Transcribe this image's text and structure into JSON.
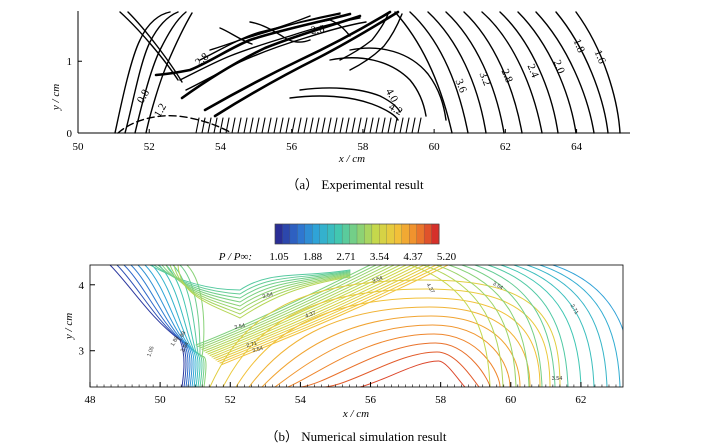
{
  "chart_data": [
    {
      "type": "contour",
      "caption": "（a） Experimental result",
      "xlabel": "x / cm",
      "ylabel": "y / cm",
      "xlim": [
        50,
        65.5
      ],
      "ylim": [
        0,
        1.7
      ],
      "xticks": [
        50,
        52,
        54,
        56,
        58,
        60,
        62,
        64
      ],
      "yticks": [
        0,
        1
      ],
      "contour_labels": [
        "0.8",
        "1.2",
        "2.8",
        "2.6",
        "4.2",
        "4.0",
        "3.6",
        "3.2",
        "2.8",
        "2.4",
        "2.0",
        "1.8",
        "1.6"
      ]
    },
    {
      "type": "contour",
      "caption": "（b） Numerical simulation result",
      "xlabel": "x / cm",
      "ylabel": "y / cm",
      "xlim": [
        48,
        63.2
      ],
      "ylim": [
        2.45,
        4.3
      ],
      "xticks": [
        48,
        50,
        52,
        54,
        56,
        58,
        60,
        62
      ],
      "yticks": [
        3,
        4
      ],
      "colorbar": {
        "title": "P / P∞:",
        "tick_labels": [
          "1.05",
          "1.88",
          "2.71",
          "3.54",
          "4.37",
          "5.20"
        ],
        "range": [
          1.05,
          5.2
        ],
        "colors": [
          "#2a2e96",
          "#2f6fcf",
          "#2fa8d8",
          "#3fc6b3",
          "#7fd17e",
          "#c8d84a",
          "#f2c63a",
          "#f08a2c",
          "#d6302a"
        ]
      },
      "contour_labels": [
        "1.05",
        "1.88",
        "3.54",
        "3.54",
        "3.54",
        "2.71",
        "3.54",
        "4.37",
        "3.54",
        "4.37",
        "3.54",
        "2.71",
        "3.54",
        "1.88"
      ]
    }
  ]
}
